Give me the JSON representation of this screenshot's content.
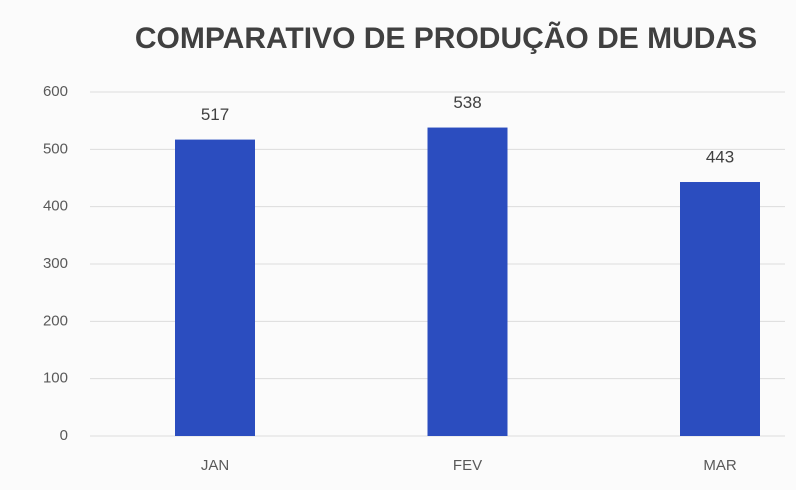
{
  "chart_data": {
    "type": "bar",
    "title": "COMPARATIVO DE PRODUÇÃO DE MUDAS",
    "categories": [
      "JAN",
      "FEV",
      "MAR"
    ],
    "values": [
      517,
      538,
      443
    ],
    "color": "#2b4dbf",
    "ylim": [
      0,
      600
    ],
    "yticks": [
      0,
      100,
      200,
      300,
      400,
      500,
      600
    ],
    "grid": true
  }
}
